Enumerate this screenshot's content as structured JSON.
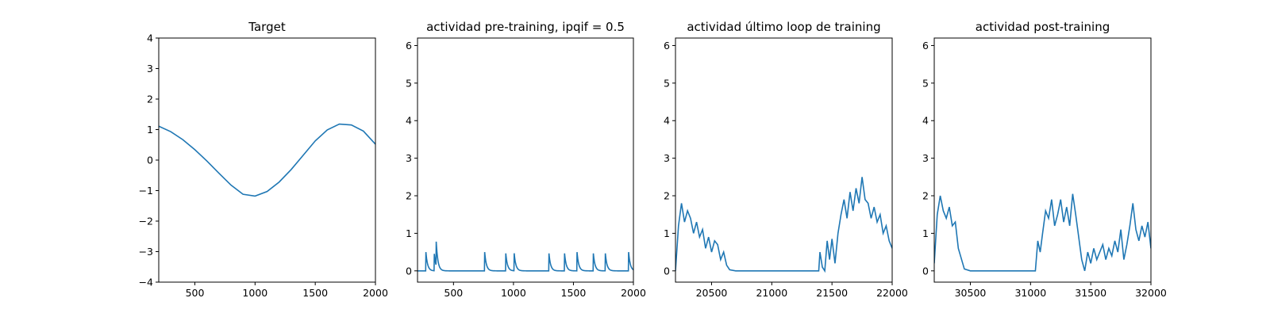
{
  "chart_data": [
    {
      "type": "line",
      "title": "Target",
      "xlim": [
        200,
        2000
      ],
      "ylim": [
        -4,
        4
      ],
      "xticks": [
        500,
        1000,
        1500,
        2000
      ],
      "xtick_labels": [
        "500",
        "1000",
        "1500",
        "2000"
      ],
      "yticks": [
        -4,
        -3,
        -2,
        -1,
        0,
        1,
        2,
        3,
        4
      ],
      "ytick_labels": [
        "−4",
        "−3",
        "−2",
        "−1",
        "0",
        "1",
        "2",
        "3",
        "4"
      ],
      "line_color": "#1f77b4",
      "x": [
        200,
        300,
        400,
        500,
        600,
        700,
        800,
        900,
        1000,
        1100,
        1200,
        1300,
        1400,
        1500,
        1600,
        1700,
        1800,
        1900,
        2000
      ],
      "y": [
        1.11,
        0.93,
        0.67,
        0.34,
        -0.03,
        -0.43,
        -0.82,
        -1.12,
        -1.18,
        -1.03,
        -0.72,
        -0.31,
        0.16,
        0.63,
        0.99,
        1.18,
        1.15,
        0.95,
        0.52
      ]
    },
    {
      "type": "line",
      "title": "actividad pre-training, ipqif = 0.5",
      "xlim": [
        200,
        2000
      ],
      "ylim": [
        -0.3,
        6.2
      ],
      "xticks": [
        500,
        1000,
        1500,
        2000
      ],
      "xtick_labels": [
        "500",
        "1000",
        "1500",
        "2000"
      ],
      "yticks": [
        0,
        1,
        2,
        3,
        4,
        5,
        6
      ],
      "ytick_labels": [
        "0",
        "1",
        "2",
        "3",
        "4",
        "5",
        "6"
      ],
      "line_color": "#1f77b4",
      "spike_times": [
        270,
        340,
        355,
        760,
        935,
        1005,
        1295,
        1425,
        1530,
        1665,
        1765,
        1960
      ],
      "spike_heights": [
        0.5,
        0.45,
        0.68,
        0.5,
        0.5,
        0.5,
        0.5,
        0.5,
        0.5,
        0.5,
        0.5,
        0.5
      ]
    },
    {
      "type": "line",
      "title": "actividad último loop de training",
      "xlim": [
        20200,
        22000
      ],
      "ylim": [
        -0.3,
        6.2
      ],
      "xticks": [
        20500,
        21000,
        21500,
        22000
      ],
      "xtick_labels": [
        "20500",
        "21000",
        "21500",
        "22000"
      ],
      "yticks": [
        0,
        1,
        2,
        3,
        4,
        5,
        6
      ],
      "ytick_labels": [
        "0",
        "1",
        "2",
        "3",
        "4",
        "5",
        "6"
      ],
      "line_color": "#1f77b4",
      "x": [
        20200,
        20225,
        20250,
        20275,
        20300,
        20325,
        20350,
        20375,
        20400,
        20425,
        20450,
        20475,
        20500,
        20525,
        20550,
        20575,
        20600,
        20625,
        20650,
        20700,
        20800,
        20900,
        21000,
        21100,
        21200,
        21300,
        21390,
        21400,
        21420,
        21440,
        21460,
        21480,
        21500,
        21525,
        21550,
        21575,
        21600,
        21625,
        21650,
        21675,
        21700,
        21725,
        21750,
        21775,
        21800,
        21825,
        21850,
        21875,
        21900,
        21925,
        21950,
        21975,
        22000
      ],
      "y": [
        0.0,
        1.2,
        1.8,
        1.3,
        1.6,
        1.4,
        1.0,
        1.3,
        0.9,
        1.1,
        0.6,
        0.9,
        0.5,
        0.8,
        0.7,
        0.3,
        0.5,
        0.15,
        0.03,
        0.0,
        0.0,
        0.0,
        0.0,
        0.0,
        0.0,
        0.0,
        0.0,
        0.5,
        0.1,
        0.0,
        0.8,
        0.3,
        0.85,
        0.2,
        1.0,
        1.5,
        1.9,
        1.4,
        2.1,
        1.6,
        2.2,
        1.8,
        2.5,
        1.9,
        1.8,
        1.4,
        1.7,
        1.3,
        1.5,
        1.0,
        1.2,
        0.8,
        0.6
      ]
    },
    {
      "type": "line",
      "title": "actividad post-training",
      "xlim": [
        30200,
        32000
      ],
      "ylim": [
        -0.3,
        6.2
      ],
      "xticks": [
        30500,
        31000,
        31500,
        32000
      ],
      "xtick_labels": [
        "30500",
        "31000",
        "31500",
        "32000"
      ],
      "yticks": [
        0,
        1,
        2,
        3,
        4,
        5,
        6
      ],
      "ytick_labels": [
        "0",
        "1",
        "2",
        "3",
        "4",
        "5",
        "6"
      ],
      "line_color": "#1f77b4",
      "x": [
        30200,
        30225,
        30250,
        30275,
        30300,
        30325,
        30350,
        30375,
        30400,
        30450,
        30500,
        30600,
        30700,
        30800,
        30900,
        31000,
        31040,
        31060,
        31080,
        31100,
        31125,
        31150,
        31175,
        31200,
        31225,
        31250,
        31275,
        31300,
        31325,
        31350,
        31375,
        31400,
        31425,
        31450,
        31475,
        31500,
        31525,
        31550,
        31575,
        31600,
        31625,
        31650,
        31675,
        31700,
        31725,
        31750,
        31775,
        31800,
        31825,
        31850,
        31875,
        31900,
        31925,
        31950,
        31975,
        32000
      ],
      "y": [
        0.2,
        1.5,
        2.0,
        1.6,
        1.4,
        1.7,
        1.2,
        1.3,
        0.6,
        0.05,
        0.0,
        0.0,
        0.0,
        0.0,
        0.0,
        0.0,
        0.0,
        0.8,
        0.5,
        1.0,
        1.6,
        1.4,
        1.9,
        1.2,
        1.5,
        1.9,
        1.3,
        1.7,
        1.2,
        2.05,
        1.5,
        0.9,
        0.3,
        0.0,
        0.5,
        0.2,
        0.6,
        0.3,
        0.5,
        0.7,
        0.3,
        0.6,
        0.4,
        0.8,
        0.5,
        1.1,
        0.3,
        0.7,
        1.2,
        1.8,
        1.1,
        0.8,
        1.2,
        0.9,
        1.3,
        0.6
      ]
    }
  ]
}
